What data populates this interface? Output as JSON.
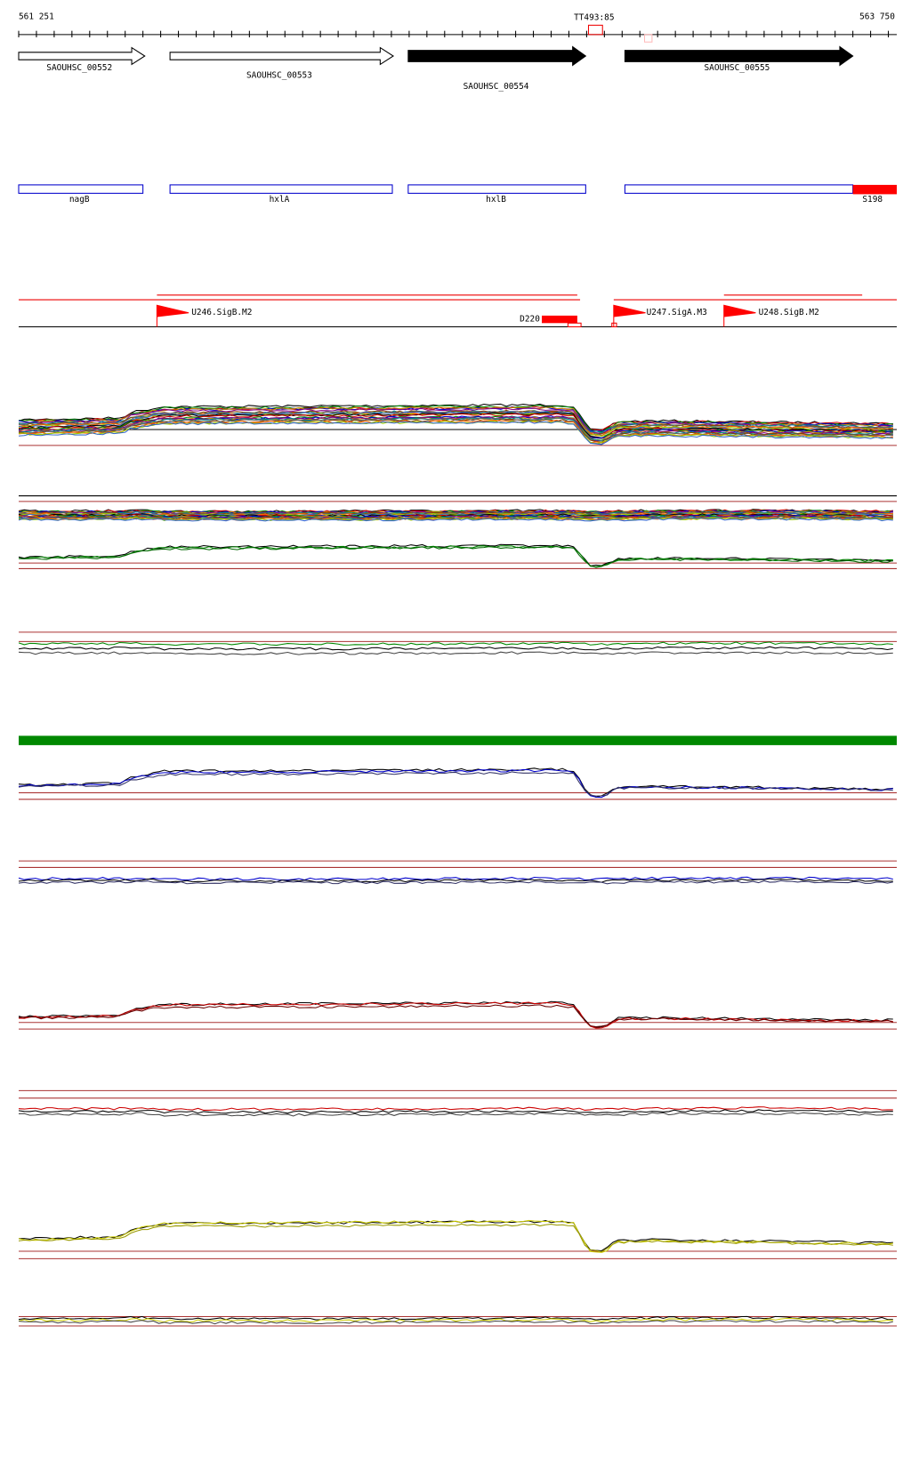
{
  "ruler": {
    "start": "561 251",
    "end": "563 750",
    "marker": "TT493:85"
  },
  "genes": [
    {
      "label": "SAOUHSC_00552"
    },
    {
      "label": "SAOUHSC_00553"
    },
    {
      "label": "SAOUHSC_00554"
    },
    {
      "label": "SAOUHSC_00555"
    }
  ],
  "features": [
    {
      "label": "nagB"
    },
    {
      "label": "hxlA"
    },
    {
      "label": "hxlB"
    },
    {
      "label": "S198"
    }
  ],
  "regulators": [
    {
      "label": "U246.SigB.M2"
    },
    {
      "label": "D220"
    },
    {
      "label": "U247.SigA.M3"
    },
    {
      "label": "U248.SigB.M2"
    }
  ]
}
